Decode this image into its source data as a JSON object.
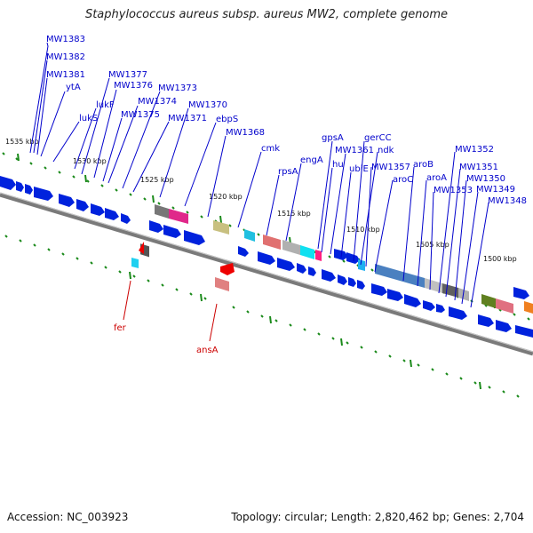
{
  "title": "Staphylococcus aureus subsp. aureus MW2, complete genome",
  "footer": {
    "accession": "Accession: NC_003923",
    "summary": "Topology: circular; Length: 2,820,462 bp; Genes: 2,704"
  },
  "ticks": [
    "1535 kbp",
    "1530 kbp",
    "1525 kbp",
    "1520 kbp",
    "1515 kbp",
    "1510 kbp",
    "1505 kbp",
    "1500 kbp"
  ],
  "upper_genes": [
    "MW1383",
    "MW1382",
    "MW1381",
    "ytA",
    "lukS",
    "lukF",
    "MW1377",
    "MW1376",
    "MW1375",
    "MW1374",
    "MW1373",
    "MW1371",
    "MW1370",
    "ebpS",
    "MW1368",
    "cmk",
    "rpsA",
    "engA",
    "gpsA",
    "hu",
    "MW1361",
    "ubiE",
    "gerCC",
    "ndk",
    "MW1357",
    "aroC",
    "aroB",
    "aroA",
    "MW1353",
    "MW1352",
    "MW1351",
    "MW1350",
    "MW1349",
    "MW1348"
  ],
  "lower_genes": [
    "fer",
    "ansA"
  ],
  "colors": {
    "gene": "#0000cc",
    "rna": "#cc0000",
    "tick": "#1a8a1a",
    "backbone": "#808080"
  }
}
